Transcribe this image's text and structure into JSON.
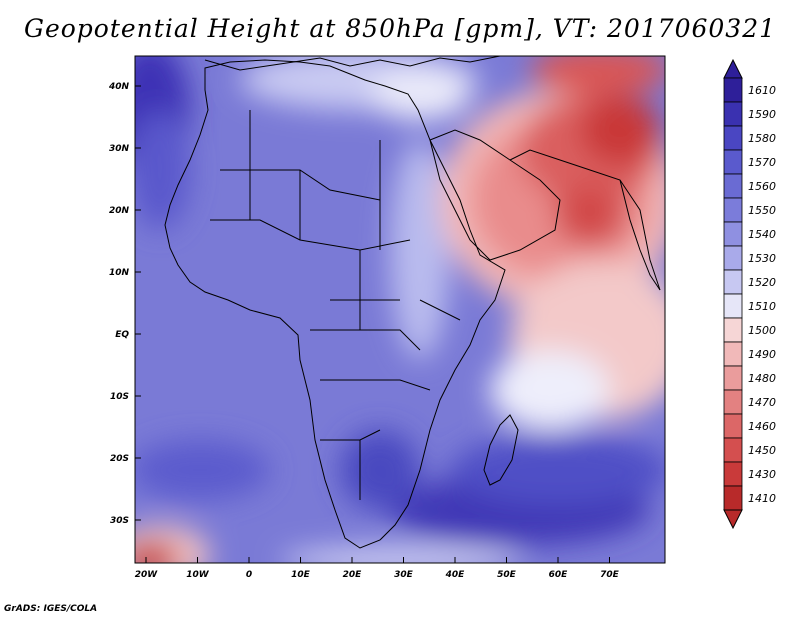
{
  "title": "Geopotential Height at 850hPa [gpm], VT: 2017060321",
  "credit": "GrADS: IGES/COLA",
  "lat_labels": [
    "40N",
    "30N",
    "20N",
    "10N",
    "EQ",
    "10S",
    "20S",
    "30S"
  ],
  "lon_labels": [
    "20W",
    "10W",
    "0",
    "10E",
    "20E",
    "30E",
    "40E",
    "50E",
    "60E",
    "70E"
  ],
  "colorbar": {
    "labels": [
      "1610",
      "1590",
      "1580",
      "1570",
      "1560",
      "1550",
      "1540",
      "1530",
      "1520",
      "1510",
      "1500",
      "1490",
      "1480",
      "1470",
      "1460",
      "1450",
      "1430",
      "1410"
    ],
    "colors": [
      "#2e1f99",
      "#3a31b0",
      "#4a46c2",
      "#5a5acd",
      "#6a6bd3",
      "#7b7cda",
      "#8f90e1",
      "#a9aaea",
      "#c7c8f2",
      "#e6e6f8",
      "#f6d6d6",
      "#f1b9b9",
      "#ea9c9c",
      "#e38181",
      "#dc6767",
      "#d44f4f",
      "#c93a3a",
      "#b82a2a"
    ]
  },
  "colors": {
    "ocean_blue": "#7878d4",
    "land_blue": "#8080d8",
    "arabia_red": "#e26e6e",
    "deep_red": "#c43030"
  }
}
